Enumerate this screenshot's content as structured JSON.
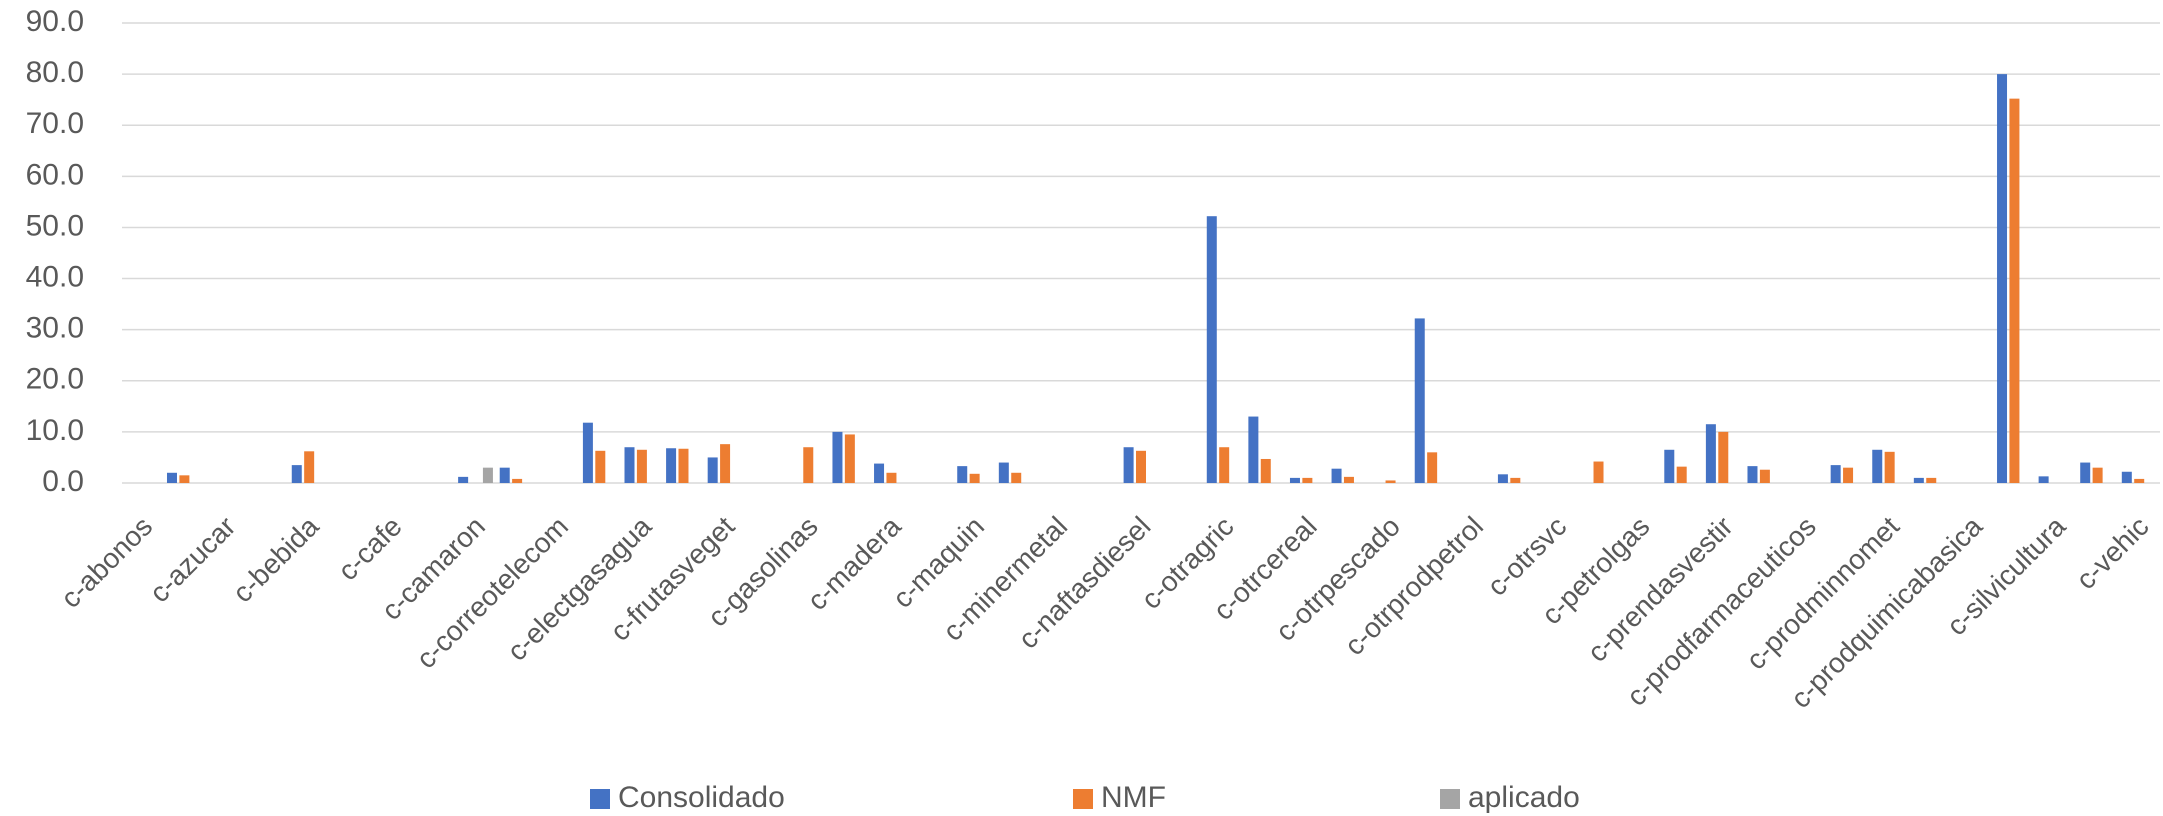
{
  "chart_data": {
    "type": "bar",
    "categories": [
      "c-abonos",
      null,
      "c-azucar",
      null,
      "c-bebida",
      null,
      "c-cafe",
      null,
      "c-camaron",
      null,
      "c-correotelecom",
      null,
      "c-electgasagua",
      null,
      "c-frutasveget",
      null,
      "c-gasolinas",
      null,
      "c-madera",
      null,
      "c-maquin",
      null,
      "c-minermetal",
      null,
      "c-naftasdiesel",
      null,
      "c-otragric",
      null,
      "c-otrcereal",
      null,
      "c-otrpescado",
      null,
      "c-otrprodpetrol",
      null,
      "c-otrsvc",
      null,
      "c-petrolgas",
      null,
      "c-prendasvestir",
      null,
      "c-prodfarmaceuticos",
      null,
      "c-prodminnomet",
      null,
      "c-prodquimicabasica",
      null,
      "c-silvicultura",
      null,
      "c-vehic"
    ],
    "series": [
      {
        "name": "Consolidado",
        "color": "#4472c4",
        "values": [
          null,
          2.0,
          null,
          null,
          3.5,
          null,
          null,
          null,
          1.2,
          3.0,
          null,
          11.8,
          7.0,
          6.8,
          5.0,
          null,
          null,
          10.0,
          3.8,
          null,
          3.3,
          4.0,
          null,
          null,
          7.0,
          null,
          52.2,
          13.0,
          1.0,
          2.8,
          null,
          32.2,
          null,
          1.7,
          null,
          null,
          null,
          6.5,
          11.5,
          3.3,
          null,
          3.5,
          6.5,
          1.0,
          null,
          80.0,
          1.3,
          4.0,
          2.2
        ]
      },
      {
        "name": "NMF",
        "color": "#ed7d31",
        "values": [
          null,
          1.5,
          null,
          null,
          6.2,
          null,
          null,
          null,
          null,
          0.8,
          null,
          6.3,
          6.5,
          6.7,
          7.6,
          null,
          7.0,
          9.5,
          2.0,
          null,
          1.8,
          2.0,
          null,
          null,
          6.3,
          null,
          7.0,
          4.7,
          1.0,
          1.2,
          0.5,
          6.0,
          null,
          1.0,
          null,
          4.2,
          null,
          3.2,
          10.0,
          2.6,
          null,
          3.0,
          6.1,
          1.0,
          null,
          75.2,
          null,
          3.0,
          0.8
        ]
      },
      {
        "name": "aplicado",
        "color": "#a5a5a5",
        "values": [
          null,
          null,
          null,
          null,
          null,
          null,
          null,
          null,
          3.0,
          null,
          null,
          null,
          null,
          null,
          null,
          null,
          null,
          null,
          null,
          null,
          null,
          null,
          null,
          null,
          null,
          null,
          null,
          null,
          null,
          null,
          null,
          null,
          null,
          null,
          null,
          null,
          null,
          null,
          null,
          null,
          null,
          null,
          null,
          null,
          null,
          null,
          null,
          null,
          null
        ]
      }
    ],
    "ylim": [
      0,
      90
    ],
    "yticks": [
      {
        "value": 0,
        "label": "0.0"
      },
      {
        "value": 10,
        "label": "10.0"
      },
      {
        "value": 20,
        "label": "20.0"
      },
      {
        "value": 30,
        "label": "30.0"
      },
      {
        "value": 40,
        "label": "40.0"
      },
      {
        "value": 50,
        "label": "50.0"
      },
      {
        "value": 60,
        "label": "60.0"
      },
      {
        "value": 70,
        "label": "70.0"
      },
      {
        "value": 80,
        "label": "80.0"
      },
      {
        "value": 90,
        "label": "90.0"
      }
    ],
    "grid": true,
    "legend": "bottom"
  }
}
